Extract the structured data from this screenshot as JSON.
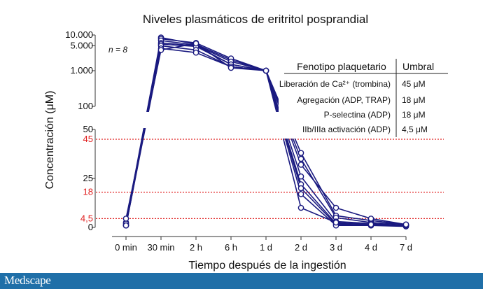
{
  "chart_data": {
    "type": "line",
    "title": "Niveles plasmáticos de eritritol posprandial",
    "xlabel": "Tiempo después de la ingestión",
    "ylabel": "Concentración (μM)",
    "categories": [
      "0 min",
      "30 min",
      "2 h",
      "6 h",
      "1 d",
      "2 d",
      "3 d",
      "4 d",
      "7 d"
    ],
    "y_axis": {
      "upper_segment": {
        "range": [
          100,
          10000
        ],
        "ticks": [
          "10.000",
          "5.000",
          "1.000",
          "100"
        ]
      },
      "lower_segment": {
        "range": [
          0,
          50
        ],
        "ticks": [
          "50",
          "25",
          "0"
        ]
      },
      "threshold_ticks": [
        "45",
        "18",
        "4,5"
      ]
    },
    "annotation": "n = 8",
    "threshold_lines": [
      45,
      18,
      4.5
    ],
    "series": [
      {
        "values": [
          2.5,
          8500,
          5500,
          2000,
          1000,
          38,
          6,
          3.5,
          1.5
        ]
      },
      {
        "values": [
          1.5,
          7800,
          6000,
          2200,
          1000,
          35,
          5,
          2.5,
          1.5
        ]
      },
      {
        "values": [
          1,
          7000,
          5200,
          1800,
          1000,
          26,
          3,
          2,
          1
        ]
      },
      {
        "values": [
          2,
          6000,
          5000,
          1500,
          1000,
          22,
          2,
          1.5,
          1
        ]
      },
      {
        "values": [
          1,
          5500,
          4800,
          1500,
          1000,
          20,
          1.5,
          1,
          1
        ]
      },
      {
        "values": [
          1,
          5000,
          3800,
          1300,
          1000,
          17,
          1,
          1,
          0.5
        ]
      },
      {
        "values": [
          1,
          4200,
          3200,
          1300,
          1000,
          10,
          2.5,
          1.5,
          1
        ]
      },
      {
        "values": [
          4.5,
          3800,
          5800,
          1200,
          1000,
          32,
          10,
          4.5,
          1.5
        ]
      }
    ],
    "table": {
      "headers": [
        "Fenotipo plaquetario",
        "Umbral"
      ],
      "rows": [
        {
          "label": "Liberación de Ca²⁺ (trombina)",
          "value": "45 μM"
        },
        {
          "label": "Agregación (ADP, TRAP)",
          "value": "18 μM"
        },
        {
          "label": "P-selectina (ADP)",
          "value": "18 μM"
        },
        {
          "label": "IIb/IIIa activación (ADP)",
          "value": "4,5 μM"
        }
      ]
    },
    "colors": {
      "series": "#1a1a80",
      "threshold": "#e02020",
      "footer": "#1f6fa8"
    }
  },
  "footer": {
    "logo": "Medscape"
  }
}
